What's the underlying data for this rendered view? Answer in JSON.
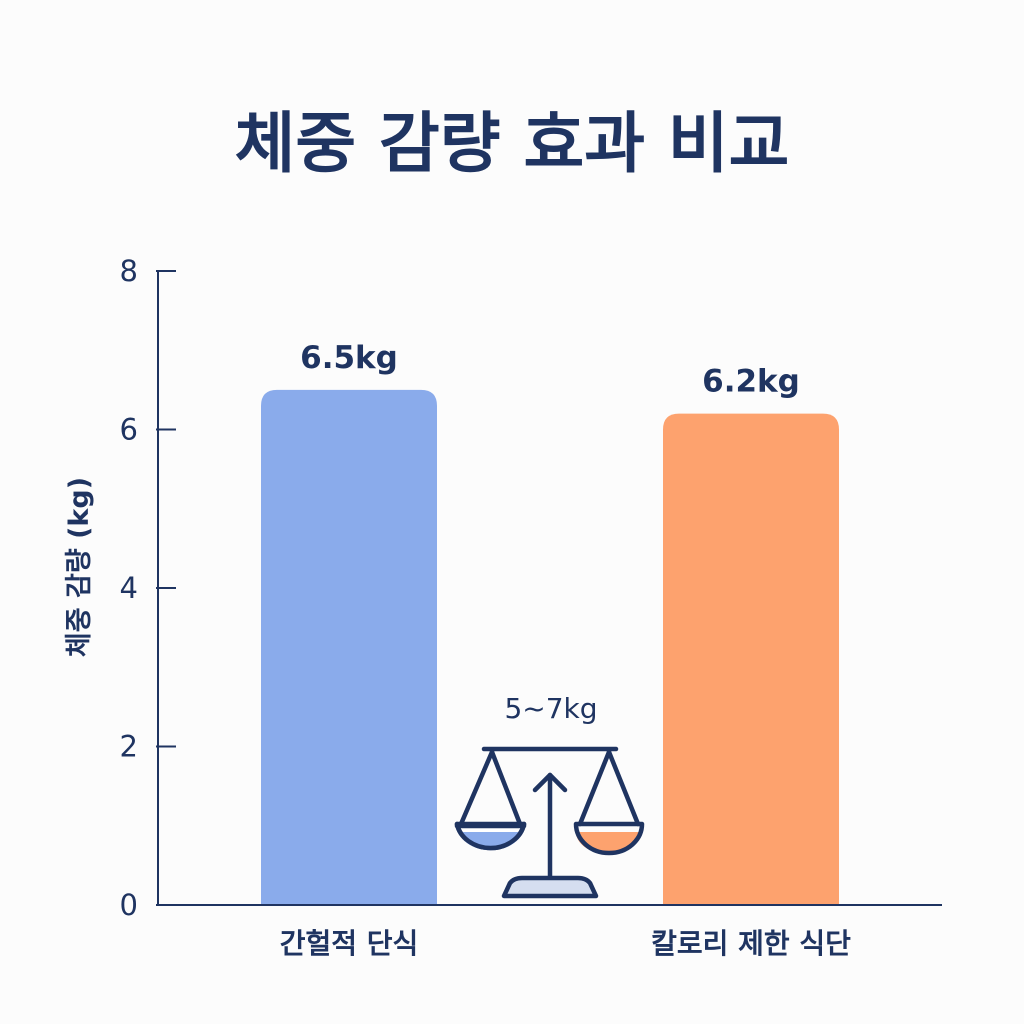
{
  "chart_data": {
    "type": "bar",
    "title": "체중 감량 효과 비교",
    "xlabel": "",
    "ylabel": "체중 감량 (kg)",
    "ylim": [
      0,
      8
    ],
    "yticks": [
      0,
      2,
      4,
      6,
      8
    ],
    "grid": false,
    "categories": [
      "간헐적 단식",
      "칼로리 제한 식단"
    ],
    "values": [
      6.5,
      6.2
    ],
    "value_labels": [
      "6.5kg",
      "6.2kg"
    ],
    "colors": [
      "#8aabeb",
      "#fda26e"
    ],
    "annotation": {
      "label": "5~7kg",
      "icon": "balance-scale-icon"
    }
  }
}
